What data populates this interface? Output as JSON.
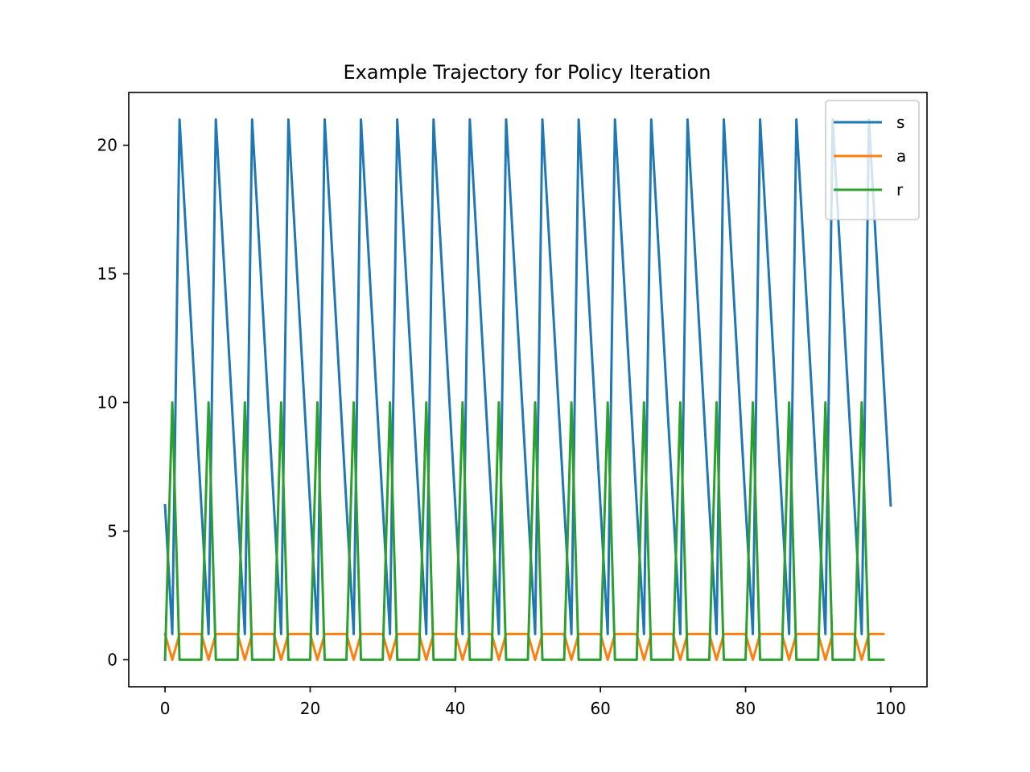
{
  "chart_data": {
    "type": "line",
    "title": "Example Trajectory for Policy Iteration",
    "xlabel": "",
    "ylabel": "",
    "xlim": [
      -5,
      105
    ],
    "ylim": [
      -1.05,
      22.05
    ],
    "x_ticks": [
      0,
      20,
      40,
      60,
      80,
      100
    ],
    "y_ticks": [
      0,
      5,
      10,
      15,
      20
    ],
    "grid": false,
    "legend_position": "top-right",
    "series": [
      {
        "name": "s",
        "color": "#1f77b4",
        "x": [
          0,
          1,
          2,
          6,
          7,
          11,
          12,
          16,
          17,
          21,
          22,
          26,
          27,
          31,
          32,
          36,
          37,
          41,
          42,
          46,
          47,
          51,
          52,
          56,
          57,
          61,
          62,
          66,
          67,
          71,
          72,
          76,
          77,
          81,
          82,
          86,
          87,
          91,
          92,
          96,
          97,
          100
        ],
        "y": [
          6,
          1,
          21,
          1,
          21,
          1,
          21,
          1,
          21,
          1,
          21,
          1,
          21,
          1,
          21,
          1,
          21,
          1,
          21,
          1,
          21,
          1,
          21,
          1,
          21,
          1,
          21,
          1,
          21,
          1,
          21,
          1,
          21,
          1,
          21,
          1,
          21,
          1,
          21,
          1,
          21,
          6
        ]
      },
      {
        "name": "a",
        "color": "#ff7f0e",
        "x": [
          0,
          1,
          2,
          5,
          6,
          7,
          10,
          11,
          12,
          15,
          16,
          17,
          20,
          21,
          22,
          25,
          26,
          27,
          30,
          31,
          32,
          35,
          36,
          37,
          40,
          41,
          42,
          45,
          46,
          47,
          50,
          51,
          52,
          55,
          56,
          57,
          60,
          61,
          62,
          65,
          66,
          67,
          70,
          71,
          72,
          75,
          76,
          77,
          80,
          81,
          82,
          85,
          86,
          87,
          90,
          91,
          92,
          95,
          96,
          97,
          99
        ],
        "y": [
          1,
          0,
          1,
          1,
          0,
          1,
          1,
          0,
          1,
          1,
          0,
          1,
          1,
          0,
          1,
          1,
          0,
          1,
          1,
          0,
          1,
          1,
          0,
          1,
          1,
          0,
          1,
          1,
          0,
          1,
          1,
          0,
          1,
          1,
          0,
          1,
          1,
          0,
          1,
          1,
          0,
          1,
          1,
          0,
          1,
          1,
          0,
          1,
          1,
          0,
          1,
          1,
          0,
          1,
          1,
          0,
          1,
          1,
          0,
          1,
          1
        ]
      },
      {
        "name": "r",
        "color": "#2ca02c",
        "x": [
          0,
          1,
          2,
          5,
          6,
          7,
          10,
          11,
          12,
          15,
          16,
          17,
          20,
          21,
          22,
          25,
          26,
          27,
          30,
          31,
          32,
          35,
          36,
          37,
          40,
          41,
          42,
          45,
          46,
          47,
          50,
          51,
          52,
          55,
          56,
          57,
          60,
          61,
          62,
          65,
          66,
          67,
          70,
          71,
          72,
          75,
          76,
          77,
          80,
          81,
          82,
          85,
          86,
          87,
          90,
          91,
          92,
          95,
          96,
          97,
          99
        ],
        "y": [
          0,
          10,
          0,
          0,
          10,
          0,
          0,
          10,
          0,
          0,
          10,
          0,
          0,
          10,
          0,
          0,
          10,
          0,
          0,
          10,
          0,
          0,
          10,
          0,
          0,
          10,
          0,
          0,
          10,
          0,
          0,
          10,
          0,
          0,
          10,
          0,
          0,
          10,
          0,
          0,
          10,
          0,
          0,
          10,
          0,
          0,
          10,
          0,
          0,
          10,
          0,
          0,
          10,
          0,
          0,
          10,
          0,
          0,
          10,
          0,
          0
        ]
      }
    ]
  }
}
